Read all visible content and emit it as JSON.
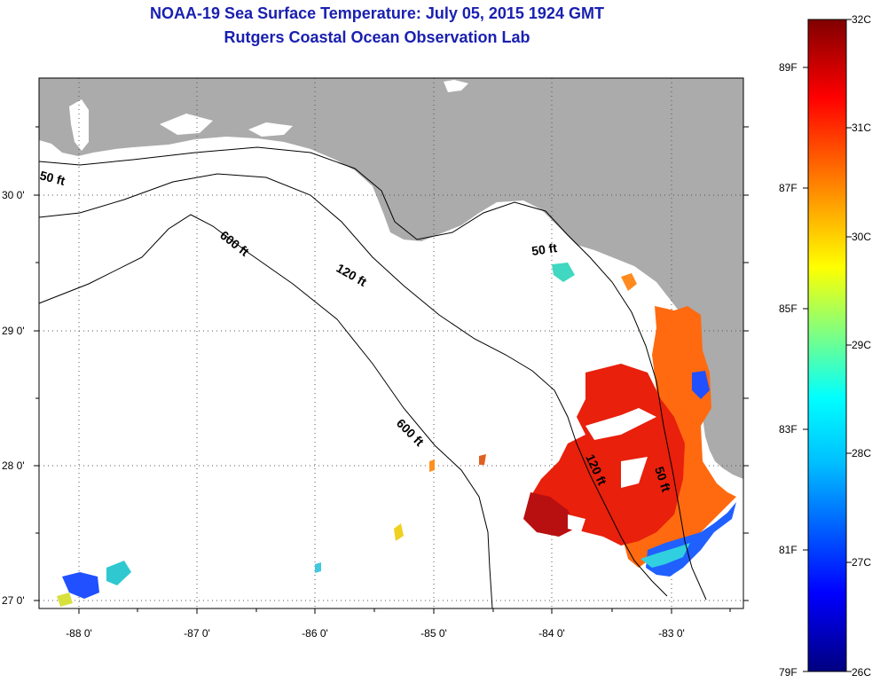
{
  "title": {
    "line1": "NOAA-19 Sea Surface Temperature:  July 05, 2015 1924 GMT",
    "line2": "Rutgers Coastal Ocean Observation Lab"
  },
  "axes": {
    "x_ticks": [
      "-88 0'",
      "-87 0'",
      "-86 0'",
      "-85 0'",
      "-84 0'",
      "-83 0'"
    ],
    "y_ticks": [
      "30 0'",
      "29 0'",
      "28 0'",
      "27 0'"
    ]
  },
  "contours": {
    "ft50_a": "50 ft",
    "ft50_b": "50 ft",
    "ft50_c": "50 ft",
    "ft120_a": "120 ft",
    "ft120_b": "120 ft",
    "ft600_a": "600 ft",
    "ft600_b": "600 ft"
  },
  "colorbar": {
    "celsius": [
      "32C",
      "31C",
      "30C",
      "29C",
      "28C",
      "27C",
      "26C"
    ],
    "fahrenheit": [
      "89F",
      "87F",
      "85F",
      "83F",
      "81F",
      "79F"
    ]
  },
  "colors": {
    "title": "#1a20b0",
    "land": "#ababab",
    "ocean": "#ffffff",
    "scale": [
      "#800000",
      "#ff0000",
      "#ff8000",
      "#ffff00",
      "#80ff80",
      "#00ffff",
      "#0080ff",
      "#0000ff",
      "#000080"
    ]
  }
}
